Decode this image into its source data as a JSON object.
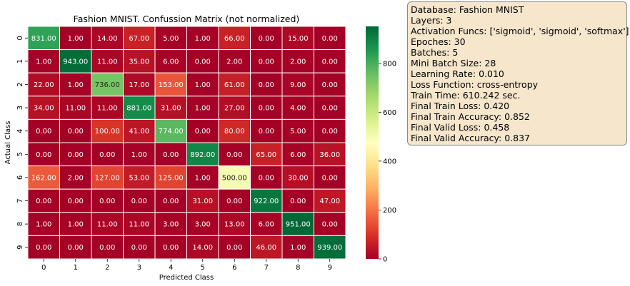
{
  "chart_data": {
    "type": "heatmap",
    "title": "Fashion MNIST. Confussion Matrix (not normalized)",
    "xlabel": "Predicted Class",
    "ylabel": "Actual Class",
    "x_categories": [
      "0",
      "1",
      "2",
      "3",
      "4",
      "5",
      "6",
      "7",
      "8",
      "9"
    ],
    "y_categories": [
      "0",
      "1",
      "2",
      "3",
      "4",
      "5",
      "6",
      "7",
      "8",
      "9"
    ],
    "values": [
      [
        831,
        1,
        14,
        67,
        5,
        1,
        66,
        0,
        15,
        0
      ],
      [
        1,
        943,
        11,
        35,
        6,
        0,
        2,
        0,
        2,
        0
      ],
      [
        22,
        1,
        736,
        17,
        153,
        1,
        61,
        0,
        9,
        0
      ],
      [
        34,
        11,
        11,
        881,
        31,
        1,
        27,
        0,
        4,
        0
      ],
      [
        0,
        0,
        100,
        41,
        774,
        0,
        80,
        0,
        5,
        0
      ],
      [
        0,
        0,
        0,
        1,
        0,
        892,
        0,
        65,
        6,
        36
      ],
      [
        162,
        2,
        127,
        53,
        125,
        1,
        500,
        0,
        30,
        0
      ],
      [
        0,
        0,
        0,
        0,
        0,
        31,
        0,
        922,
        0,
        47
      ],
      [
        1,
        1,
        11,
        11,
        3,
        3,
        13,
        6,
        951,
        0
      ],
      [
        0,
        0,
        0,
        0,
        0,
        14,
        0,
        46,
        1,
        939
      ]
    ],
    "value_format": "2 decimals",
    "colormap": "RdYlGn",
    "color_range": [
      0,
      951
    ],
    "colorbar_ticks": [
      "0",
      "200",
      "400",
      "600",
      "800"
    ],
    "colorbar_tick_values": [
      0,
      200,
      400,
      600,
      800
    ]
  },
  "info_box": {
    "lines": [
      "Database: Fashion MNIST",
      "Layers: 3",
      "Activation Funcs: ['sigmoid', 'sigmoid', 'softmax']",
      "Epoches: 30",
      "Batches: 5",
      "Mini Batch Size: 28",
      "Learning Rate: 0.010",
      "Loss Function: cross-entropy",
      "Train Time: 610.242 sec.",
      "Final Train Loss: 0.420",
      "Final Train Accuracy: 0.852",
      "Final Valid Loss: 0.458",
      "Final Valid Accuracy: 0.837"
    ]
  }
}
